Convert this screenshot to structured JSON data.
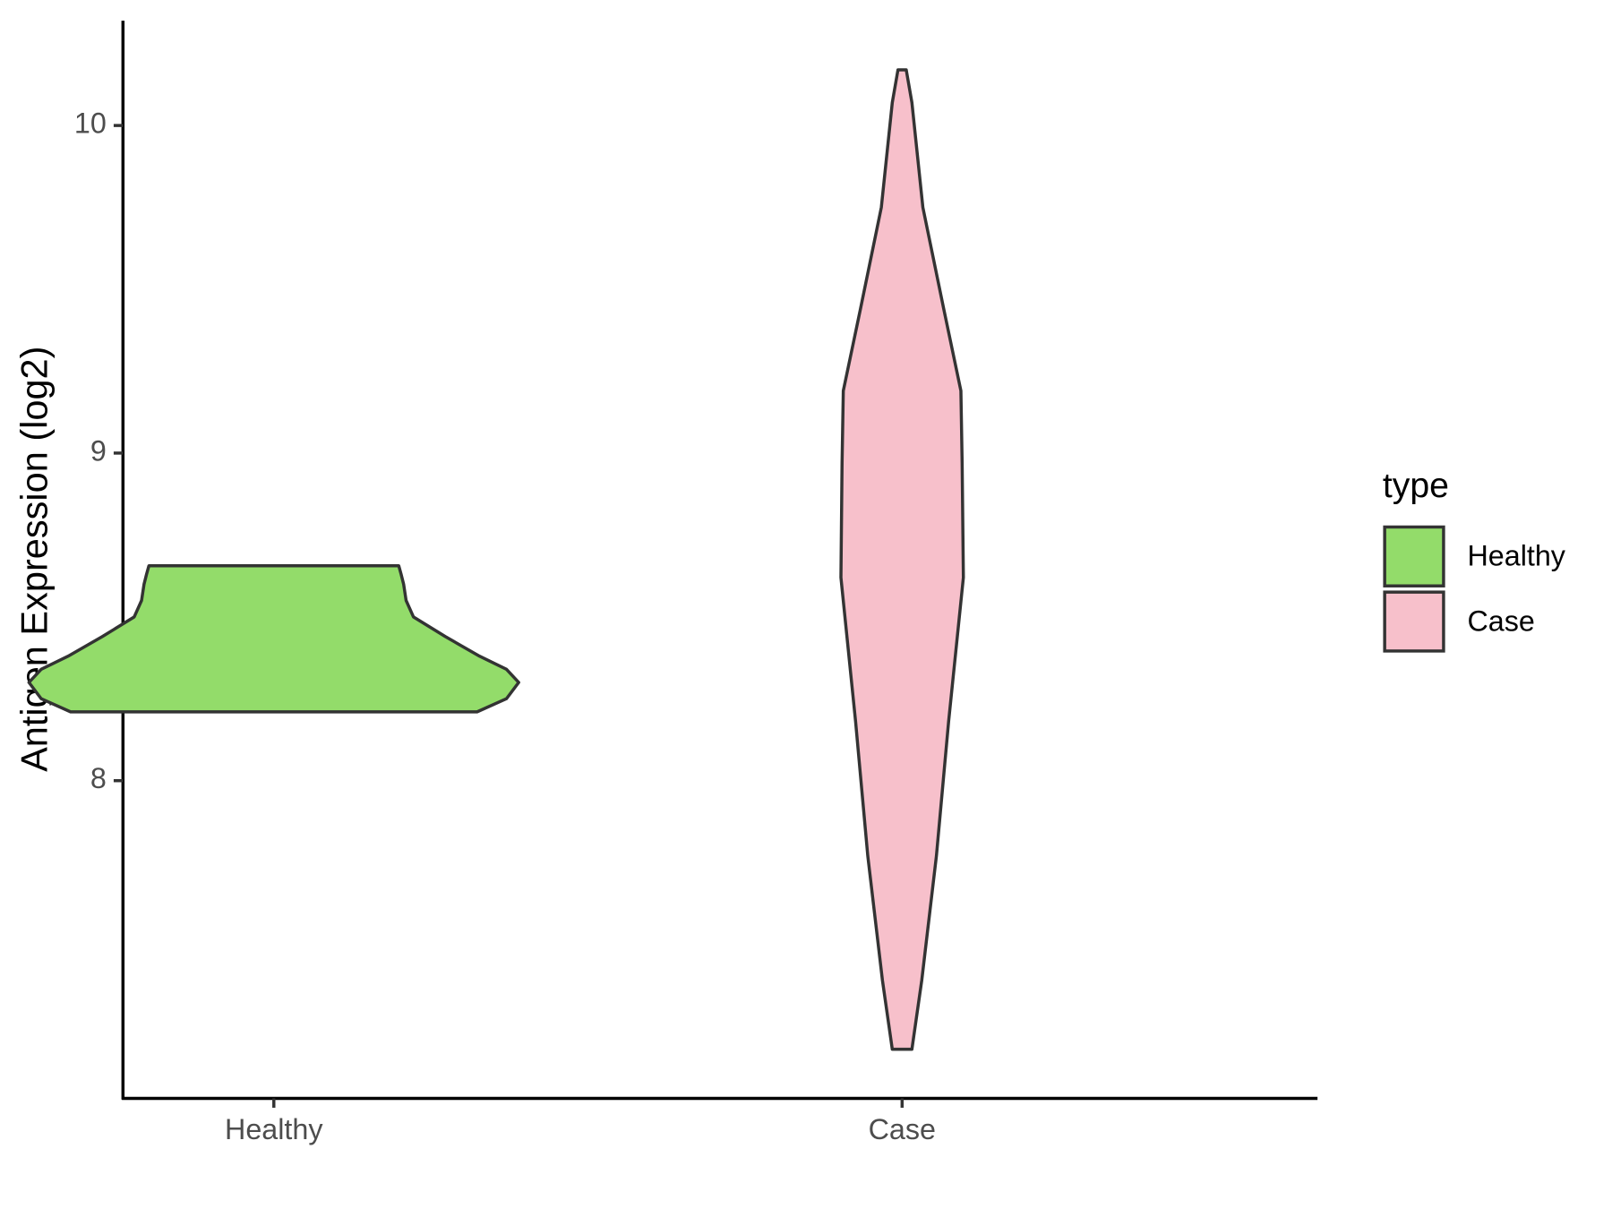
{
  "chart_data": {
    "type": "violin",
    "y_label": "Antigen Expression (log2)",
    "categories": [
      "Healthy",
      "Case"
    ],
    "ylim": [
      7.03,
      10.32
    ],
    "yticks": [
      8,
      9,
      10
    ],
    "legend_title": "type",
    "legend": "right",
    "series": [
      {
        "name": "Healthy",
        "color": "#93dc6a",
        "y": [
          8.21,
          8.25,
          8.3,
          8.34,
          8.38,
          8.44,
          8.5,
          8.55,
          8.6,
          8.63,
          8.656
        ],
        "density": [
          0.83,
          0.95,
          1.0,
          0.95,
          0.84,
          0.7,
          0.57,
          0.54,
          0.53,
          0.52,
          0.51
        ]
      },
      {
        "name": "Case",
        "color": "#f7c0cb",
        "y": [
          7.18,
          7.39,
          7.77,
          8.18,
          8.62,
          8.97,
          9.19,
          9.44,
          9.75,
          10.07,
          10.17
        ],
        "density": [
          0.04,
          0.08,
          0.14,
          0.19,
          0.25,
          0.245,
          0.24,
          0.17,
          0.085,
          0.04,
          0.017
        ]
      }
    ]
  }
}
